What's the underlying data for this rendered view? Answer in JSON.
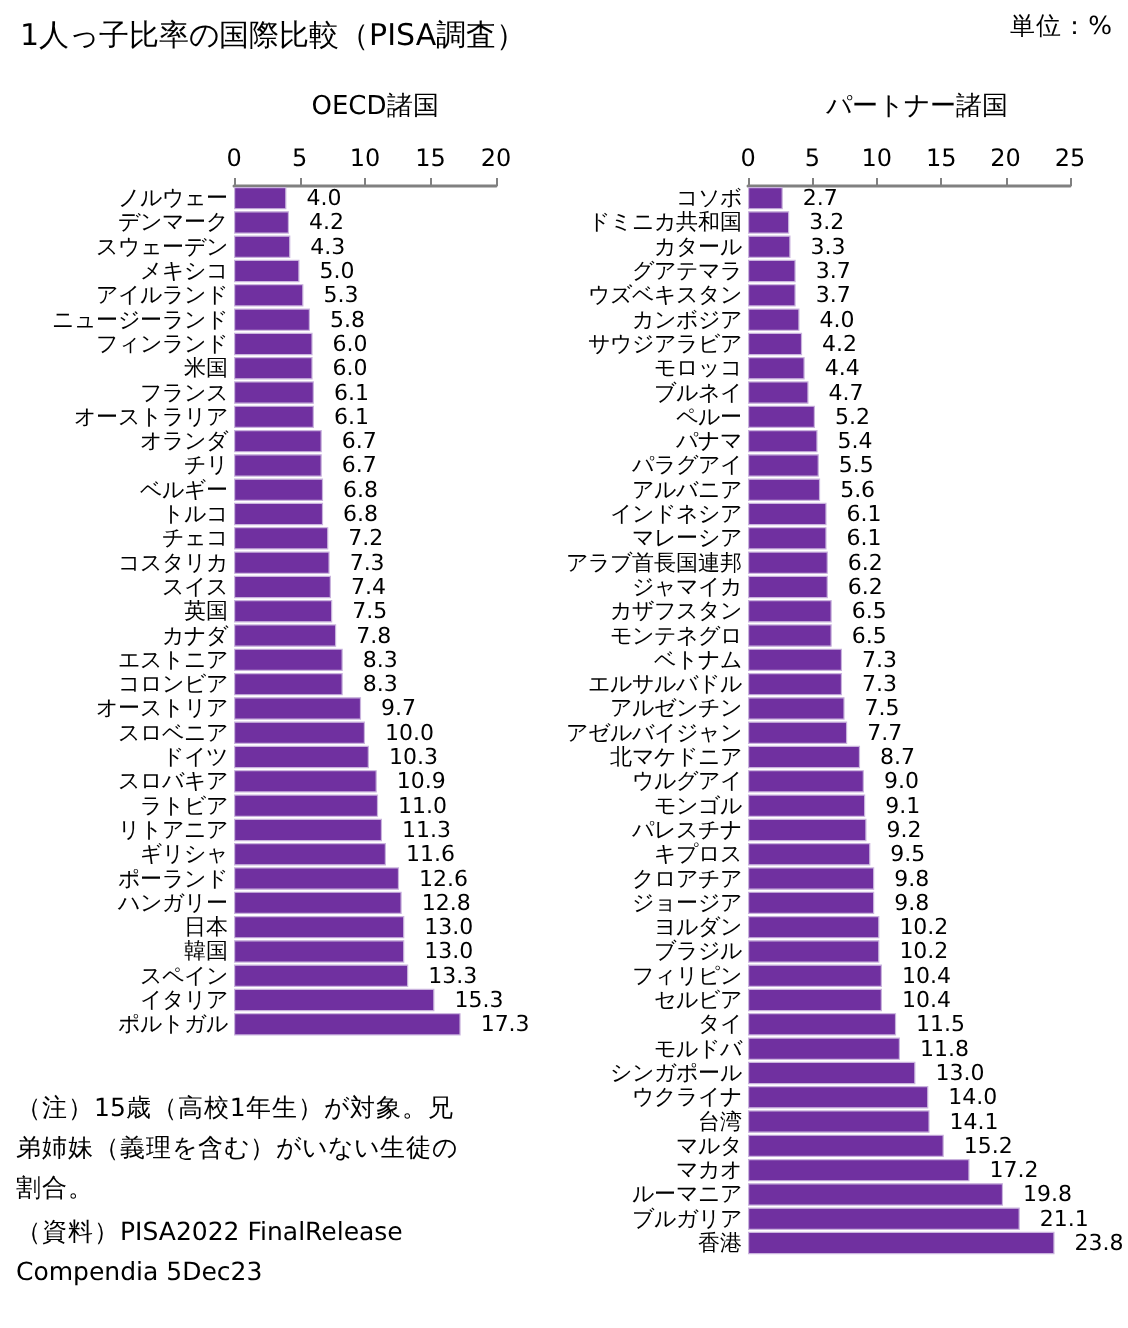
{
  "chart_data": [
    {
      "type": "bar",
      "orientation": "horizontal",
      "title": "1人っ子比率の国際比較（PISA調査）",
      "subtitle": "OECD諸国",
      "categories": [
        "ノルウェー",
        "デンマーク",
        "スウェーデン",
        "メキシコ",
        "アイルランド",
        "ニュージーランド",
        "フィンランド",
        "米国",
        "フランス",
        "オーストラリア",
        "オランダ",
        "チリ",
        "ベルギー",
        "トルコ",
        "チェコ",
        "コスタリカ",
        "スイス",
        "英国",
        "カナダ",
        "エストニア",
        "コロンビア",
        "オーストリア",
        "スロベニア",
        "ドイツ",
        "スロバキア",
        "ラトビア",
        "リトアニア",
        "ギリシャ",
        "ポーランド",
        "ハンガリー",
        "日本",
        "韓国",
        "スペイン",
        "イタリア",
        "ポルトガル"
      ],
      "values": [
        4.0,
        4.2,
        4.3,
        5.0,
        5.3,
        5.8,
        6.0,
        6.0,
        6.1,
        6.1,
        6.7,
        6.7,
        6.8,
        6.8,
        7.2,
        7.3,
        7.4,
        7.5,
        7.8,
        8.3,
        8.3,
        9.7,
        10.0,
        10.3,
        10.9,
        11.0,
        11.3,
        11.6,
        12.6,
        12.8,
        13.0,
        13.0,
        13.3,
        15.3,
        17.3
      ],
      "value_labels": [
        "4.0",
        "4.2",
        "4.3",
        "5.0",
        "5.3",
        "5.8",
        "6.0",
        "6.0",
        "6.1",
        "6.1",
        "6.7",
        "6.7",
        "6.8",
        "6.8",
        "7.2",
        "7.3",
        "7.4",
        "7.5",
        "7.8",
        "8.3",
        "8.3",
        "9.7",
        "10.0",
        "10.3",
        "10.9",
        "11.0",
        "11.3",
        "11.6",
        "12.6",
        "12.8",
        "13.0",
        "13.0",
        "13.3",
        "15.3",
        "17.3"
      ],
      "color": "#7030a0",
      "xlim": [
        0,
        20
      ],
      "xticks": [
        0,
        5,
        10,
        15,
        20
      ],
      "grid": false,
      "annotations": [
        "（注）15歳（高校1年生）が対象。兄弟姉妹（義理を含む）がいない生徒の割合。",
        "（資料）PISA2022 FinalRelease Compendia 5Dec23"
      ]
    },
    {
      "type": "bar",
      "orientation": "horizontal",
      "title": "パートナー諸国",
      "categories": [
        "コソボ",
        "ドミニカ共和国",
        "カタール",
        "グアテマラ",
        "ウズベキスタン",
        "カンボジア",
        "サウジアラビア",
        "モロッコ",
        "ブルネイ",
        "ペルー",
        "パナマ",
        "パラグアイ",
        "アルバニア",
        "インドネシア",
        "マレーシア",
        "アラブ首長国連邦",
        "ジャマイカ",
        "カザフスタン",
        "モンテネグロ",
        "ベトナム",
        "エルサルバドル",
        "アルゼンチン",
        "アゼルバイジャン",
        "北マケドニア",
        "ウルグアイ",
        "モンゴル",
        "パレスチナ",
        "キプロス",
        "クロアチア",
        "ジョージア",
        "ヨルダン",
        "ブラジル",
        "フィリピン",
        "セルビア",
        "タイ",
        "モルドバ",
        "シンガポール",
        "ウクライナ",
        "台湾",
        "マルタ",
        "マカオ",
        "ルーマニア",
        "ブルガリア",
        "香港"
      ],
      "values": [
        2.7,
        3.2,
        3.3,
        3.7,
        3.7,
        4.0,
        4.2,
        4.4,
        4.7,
        5.2,
        5.4,
        5.5,
        5.6,
        6.1,
        6.1,
        6.2,
        6.2,
        6.5,
        6.5,
        7.3,
        7.3,
        7.5,
        7.7,
        8.7,
        9.0,
        9.1,
        9.2,
        9.5,
        9.8,
        9.8,
        10.2,
        10.2,
        10.4,
        10.4,
        11.5,
        11.8,
        13.0,
        14.0,
        14.1,
        15.2,
        17.2,
        19.8,
        21.1,
        23.8
      ],
      "value_labels": [
        "2.7",
        "3.2",
        "3.3",
        "3.7",
        "3.7",
        "4.0",
        "4.2",
        "4.4",
        "4.7",
        "5.2",
        "5.4",
        "5.5",
        "5.6",
        "6.1",
        "6.1",
        "6.2",
        "6.2",
        "6.5",
        "6.5",
        "7.3",
        "7.3",
        "7.5",
        "7.7",
        "8.7",
        "9.0",
        "9.1",
        "9.2",
        "9.5",
        "9.8",
        "9.8",
        "10.2",
        "10.2",
        "10.4",
        "10.4",
        "11.5",
        "11.8",
        "13.0",
        "14.0",
        "14.1",
        "15.2",
        "17.2",
        "19.8",
        "21.1",
        "23.8"
      ],
      "color": "#7030a0",
      "xlim": [
        0,
        25
      ],
      "xticks": [
        0,
        5,
        10,
        15,
        20,
        25
      ],
      "grid": false,
      "annotations": [
        "単位：%"
      ]
    }
  ]
}
